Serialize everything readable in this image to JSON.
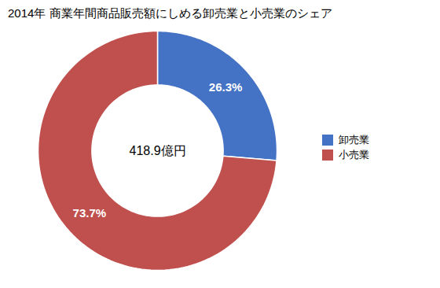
{
  "chart_data": {
    "type": "pie",
    "title": "2014年 商業年間商品販売額にしめる卸売業と小売業のシェア",
    "categories": [
      "卸売業",
      "小売業"
    ],
    "values": [
      26.3,
      73.7
    ],
    "value_labels": [
      "26.3%",
      "73.7%"
    ],
    "data_labels": true,
    "colors": [
      "#4472C4",
      "#C0504D"
    ],
    "annotations": [
      "418.9億円"
    ],
    "legend": "right"
  }
}
